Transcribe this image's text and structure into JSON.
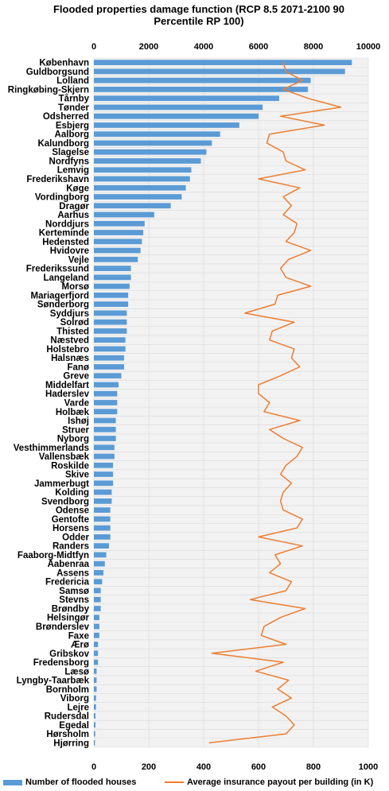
{
  "chart_data": {
    "type": "bar",
    "orientation": "horizontal",
    "title": "Flooded properties damage function (RCP 8.5 2071-2100 90 Percentile RP 100)",
    "top_axis_ticks": [
      "0",
      "2000",
      "4000",
      "6000",
      "8000",
      "10000"
    ],
    "bottom_axis_ticks": [
      "0",
      "200",
      "400",
      "600",
      "800",
      "1000"
    ],
    "top_axis_range": [
      0,
      10000
    ],
    "bottom_axis_range": [
      0,
      1000
    ],
    "grid": true,
    "legend_position": "bottom",
    "colors": {
      "bars": "#5b9bd5",
      "line": "#ed7d31",
      "grid": "#d9d9d9",
      "plot_bg": "#f2f2f2"
    },
    "categories": [
      "København",
      "Guldborgsund",
      "Lolland",
      "Ringkøbing-Skjern",
      "Tårnby",
      "Tønder",
      "Odsherred",
      "Esbjerg",
      "Aalborg",
      "Kalundborg",
      "Slagelse",
      "Nordfyns",
      "Lemvig",
      "Frederikshavn",
      "Køge",
      "Vordingborg",
      "Dragør",
      "Aarhus",
      "Norddjurs",
      "Kerteminde",
      "Hedensted",
      "Hvidovre",
      "Vejle",
      "Frederikssund",
      "Langeland",
      "Morsø",
      "Mariagerfjord",
      "Sønderborg",
      "Syddjurs",
      "Solrød",
      "Thisted",
      "Næstved",
      "Holstebro",
      "Halsnæs",
      "Fanø",
      "Greve",
      "Middelfart",
      "Haderslev",
      "Varde",
      "Holbæk",
      "Ishøj",
      "Struer",
      "Nyborg",
      "Vesthimmerlands",
      "Vallensbæk",
      "Roskilde",
      "Skive",
      "Jammerbugt",
      "Kolding",
      "Svendborg",
      "Odense",
      "Gentofte",
      "Horsens",
      "Odder",
      "Randers",
      "Faaborg-Midtfyn",
      "Aabenraa",
      "Assens",
      "Fredericia",
      "Samsø",
      "Stevns",
      "Brøndby",
      "Helsingør",
      "Brønderslev",
      "Faxe",
      "Ærø",
      "Gribskov",
      "Fredensborg",
      "Læsø",
      "Lyngby-Taarbæk",
      "Bornholm",
      "Viborg",
      "Lejre",
      "Rudersdal",
      "Egedal",
      "Hørsholm",
      "Hjørring"
    ],
    "series": [
      {
        "name": "Number of flooded houses",
        "type": "bar",
        "axis": "top",
        "values": [
          9400,
          9150,
          7900,
          7800,
          6750,
          6150,
          6000,
          5300,
          4600,
          4300,
          4100,
          3900,
          3550,
          3500,
          3350,
          3200,
          2800,
          2200,
          1850,
          1800,
          1750,
          1700,
          1600,
          1350,
          1350,
          1300,
          1250,
          1250,
          1200,
          1200,
          1200,
          1150,
          1150,
          1100,
          1100,
          1000,
          900,
          850,
          850,
          850,
          800,
          800,
          800,
          750,
          750,
          700,
          700,
          700,
          650,
          650,
          600,
          600,
          600,
          600,
          550,
          450,
          400,
          350,
          300,
          250,
          250,
          250,
          200,
          200,
          200,
          150,
          150,
          150,
          100,
          100,
          100,
          80,
          80,
          60,
          60,
          50,
          40
        ]
      },
      {
        "name": "Average insurance payout per building (in K)",
        "type": "line",
        "axis": "bottom",
        "values": [
          690,
          700,
          760,
          690,
          780,
          900,
          680,
          840,
          640,
          630,
          690,
          700,
          770,
          600,
          750,
          690,
          720,
          690,
          740,
          730,
          700,
          790,
          710,
          680,
          700,
          790,
          670,
          660,
          550,
          730,
          650,
          640,
          730,
          720,
          750,
          680,
          600,
          600,
          640,
          620,
          750,
          640,
          690,
          760,
          740,
          700,
          680,
          720,
          690,
          680,
          690,
          760,
          740,
          600,
          760,
          660,
          680,
          640,
          720,
          700,
          570,
          770,
          680,
          620,
          610,
          700,
          430,
          690,
          590,
          710,
          670,
          720,
          650,
          700,
          730,
          700,
          420
        ]
      }
    ]
  }
}
